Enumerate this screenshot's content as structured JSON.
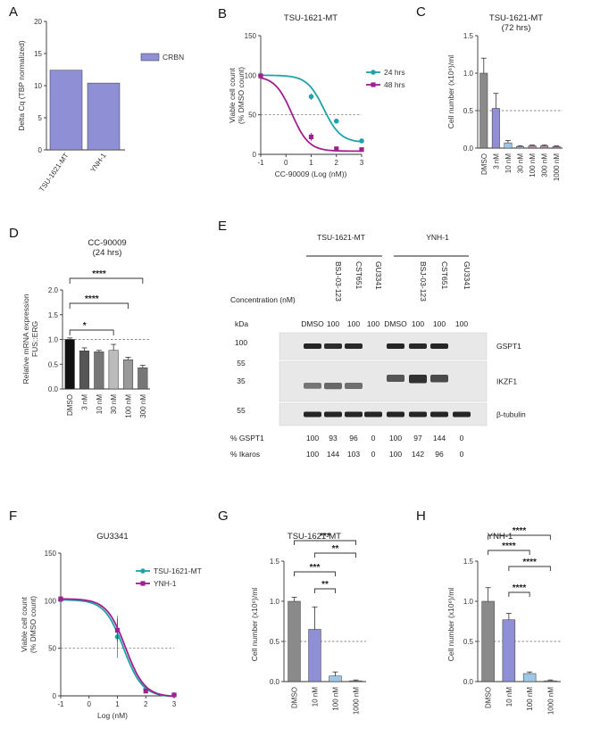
{
  "panels": {
    "A": "A",
    "B": "B",
    "C": "C",
    "D": "D",
    "E": "E",
    "F": "F",
    "G": "G",
    "H": "H"
  },
  "colors": {
    "blue": "#8f8fd6",
    "teal": "#1fa3a8",
    "magenta": "#a0208f",
    "gray": "#8a8a8a",
    "dark": "#222222",
    "lightblue": "#9ec6e6",
    "mauve": "#b98aa6"
  },
  "chart_data": [
    {
      "id": "A",
      "type": "bar",
      "categories": [
        "TSU-1621-MT",
        "YNH-1"
      ],
      "values": [
        12.4,
        10.4
      ],
      "ylabel": "Delta Cq (TBP normalized)",
      "ylim": [
        0,
        20
      ],
      "yticks": [
        0,
        5,
        10,
        15,
        20
      ],
      "legend": [
        "CRBN"
      ],
      "legend_position": "right"
    },
    {
      "id": "B",
      "type": "line",
      "title": "TSU-1621-MT",
      "xlabel": "CC-90009 (Log (nM))",
      "ylabel": "Viable cell count\n(% DMSO count)",
      "xlim": [
        -1,
        3
      ],
      "ylim": [
        0,
        150
      ],
      "xticks": [
        -1,
        0,
        1,
        2,
        3
      ],
      "yticks": [
        0,
        50,
        100,
        150
      ],
      "refline": 50,
      "series": [
        {
          "name": "24 hrs",
          "color": "teal",
          "x": [
            -1,
            1,
            2,
            3
          ],
          "y": [
            100,
            73,
            42,
            17
          ],
          "err": [
            2,
            4,
            3,
            2
          ]
        },
        {
          "name": "48 hrs",
          "color": "magenta",
          "x": [
            -1,
            1,
            2,
            3
          ],
          "y": [
            99,
            22,
            7,
            6
          ],
          "err": [
            2,
            5,
            2,
            1
          ]
        }
      ],
      "legend_position": "right"
    },
    {
      "id": "C",
      "type": "bar",
      "title": "TSU-1621-MT",
      "subtitle": "(72 hrs)",
      "ylabel": "Cell number (x10⁶)/ml",
      "categories": [
        "DMSO",
        "3 nM",
        "10 nM",
        "30 nM",
        "100 nM",
        "300 nM",
        "1000 nM"
      ],
      "values": [
        1.0,
        0.53,
        0.07,
        0.02,
        0.03,
        0.03,
        0.02
      ],
      "err": [
        0.2,
        0.2,
        0.03,
        0.01,
        0.01,
        0.01,
        0.01
      ],
      "ylim": [
        0,
        1.5
      ],
      "yticks": [
        0.0,
        0.5,
        1.0,
        1.5
      ],
      "refline": 0.5
    },
    {
      "id": "D",
      "type": "bar",
      "title": "CC-90009",
      "subtitle": "(24 hrs)",
      "ylabel": "Relative mRNA expression\nFUS::ERG",
      "categories": [
        "DMSO",
        "3 nM",
        "10 nM",
        "30 nM",
        "100 nM",
        "300 nM"
      ],
      "values": [
        1.0,
        0.77,
        0.75,
        0.78,
        0.59,
        0.43
      ],
      "err": [
        0.03,
        0.06,
        0.03,
        0.12,
        0.05,
        0.05
      ],
      "ylim": [
        0,
        2.0
      ],
      "yticks": [
        0.0,
        0.5,
        1.0,
        1.5,
        2.0
      ],
      "refline": 1.0,
      "sig": [
        {
          "label": "*",
          "to": 3
        },
        {
          "label": "****",
          "to": 4
        },
        {
          "label": "****",
          "to": 5
        }
      ]
    },
    {
      "id": "F",
      "type": "line",
      "title": "GU3341",
      "xlabel": "Log (nM)",
      "ylabel": "Viable cell count\n(% DMSO count)",
      "xlim": [
        -1,
        3
      ],
      "ylim": [
        0,
        150
      ],
      "xticks": [
        -1,
        0,
        1,
        2,
        3
      ],
      "yticks": [
        0,
        50,
        100,
        150
      ],
      "refline": 50,
      "series": [
        {
          "name": "TSU-1621-MT",
          "color": "teal",
          "x": [
            -1,
            1,
            2,
            3
          ],
          "y": [
            101,
            62,
            7,
            1
          ],
          "err": [
            2,
            22,
            2,
            1
          ]
        },
        {
          "name": "YNH-1",
          "color": "magenta",
          "x": [
            -1,
            1,
            2,
            3
          ],
          "y": [
            102,
            69,
            5,
            1
          ],
          "err": [
            2,
            12,
            2,
            1
          ]
        }
      ],
      "legend_position": "top-right"
    },
    {
      "id": "G",
      "type": "bar",
      "title": "TSU-1621-MT",
      "ylabel": "Cell number (x10⁶)/ml",
      "categories": [
        "DMSO",
        "10 nM",
        "100 nM",
        "1000 nM"
      ],
      "values": [
        1.0,
        0.65,
        0.07,
        0.01
      ],
      "err": [
        0.05,
        0.28,
        0.05,
        0.01
      ],
      "ylim": [
        0,
        1.5
      ],
      "yticks": [
        0.0,
        0.5,
        1.0,
        1.5
      ],
      "refline": 0.5,
      "sig": [
        {
          "label": "***",
          "from": 0,
          "to": 3
        },
        {
          "label": "**",
          "from": 1,
          "to": 3
        },
        {
          "label": "***",
          "from": 0,
          "to": 2
        },
        {
          "label": "**",
          "from": 1,
          "to": 2
        }
      ]
    },
    {
      "id": "H",
      "type": "bar",
      "title": "YNH-1",
      "ylabel": "Cell number (x10⁶)/ml",
      "categories": [
        "DMSO",
        "10 nM",
        "100 nM",
        "1000 nM"
      ],
      "values": [
        1.0,
        0.77,
        0.1,
        0.01
      ],
      "err": [
        0.17,
        0.08,
        0.02,
        0.01
      ],
      "ylim": [
        0,
        1.5
      ],
      "yticks": [
        0.0,
        0.5,
        1.0,
        1.5
      ],
      "refline": 0.5,
      "sig": [
        {
          "label": "****",
          "from": 0,
          "to": 3
        },
        {
          "label": "****",
          "from": 0,
          "to": 2
        },
        {
          "label": "****",
          "from": 1,
          "to": 3
        },
        {
          "label": "****",
          "from": 1,
          "to": 2
        }
      ]
    }
  ],
  "blot": {
    "group1": "TSU-1621-MT",
    "group2": "YNH-1",
    "compounds": [
      "DMSO",
      "BSJ-03-123",
      "CST651",
      "GU3341",
      "DMSO",
      "BSJ-03-123",
      "CST651",
      "GU3341"
    ],
    "concentration_label": "Concentration (nM)",
    "conc": [
      "DMSO",
      "100",
      "100",
      "100",
      "DMSO",
      "100",
      "100",
      "100"
    ],
    "kda_label": "kDa",
    "markers": [
      "100",
      "55",
      "35",
      "55"
    ],
    "proteins": [
      "GSPT1",
      "IKZF1",
      "β-tubulin"
    ],
    "gspt1_label": "% GSPT1",
    "ikaros_label": "% Ikaros",
    "gspt1": [
      "100",
      "93",
      "96",
      "0",
      "100",
      "97",
      "144",
      "0"
    ],
    "ikaros": [
      "100",
      "144",
      "103",
      "0",
      "100",
      "142",
      "96",
      "0"
    ],
    "gspt1_bands": [
      1,
      0.93,
      0.96,
      0,
      1,
      0.97,
      1,
      0
    ],
    "ikzf1_bands": [
      0.35,
      0.45,
      0.4,
      0,
      0.6,
      0.9,
      0.7,
      0
    ],
    "tubulin_bands": [
      1,
      1,
      1,
      1,
      1,
      1,
      1,
      1
    ]
  }
}
